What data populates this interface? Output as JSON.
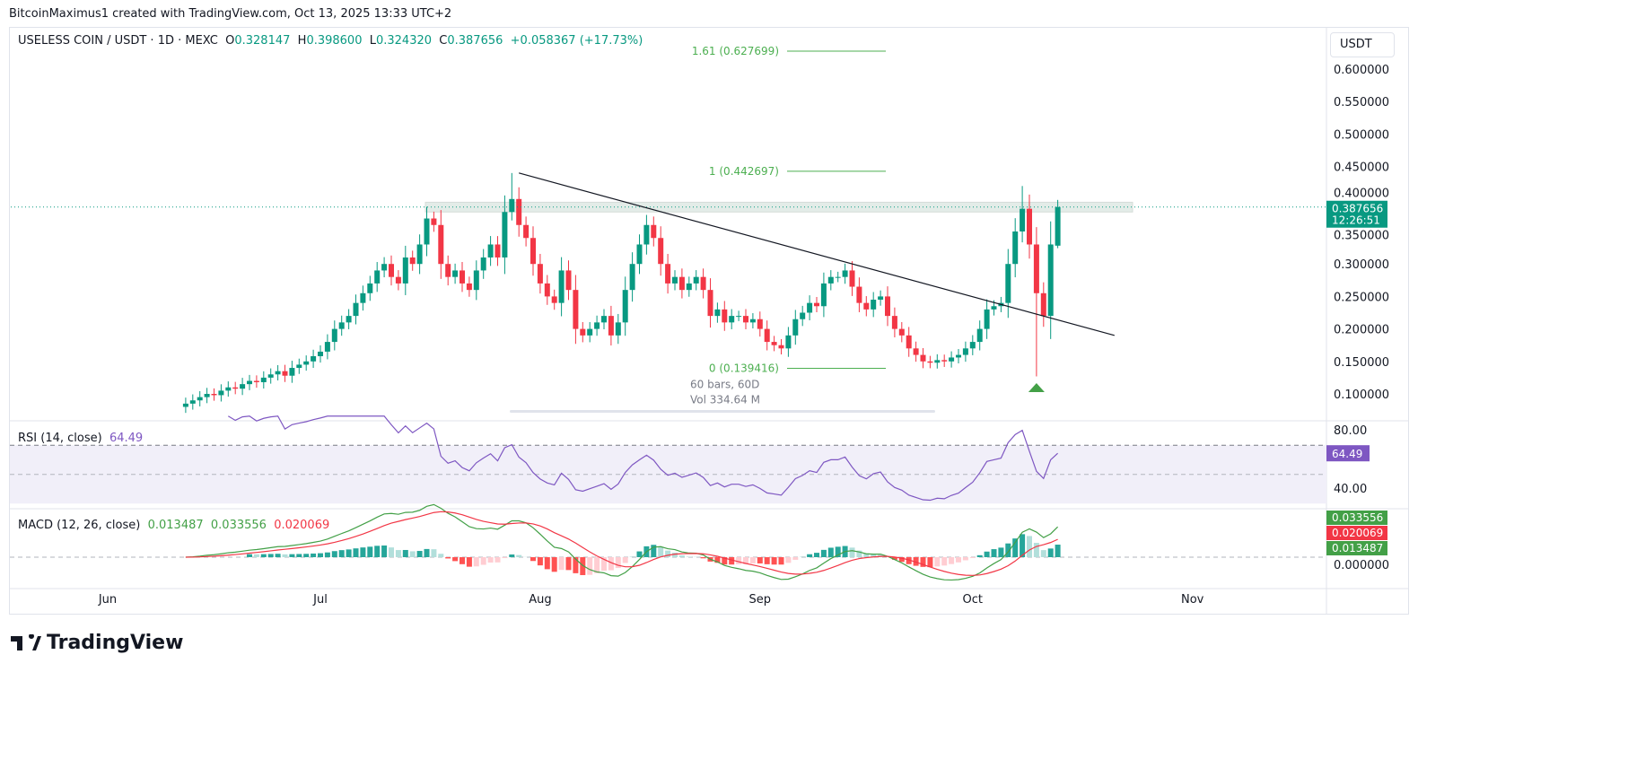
{
  "credit": "BitcoinMaximus1 created with TradingView.com, Oct 13, 2025 13:33 UTC+2",
  "legend": {
    "symbol": "USELESS COIN / USDT · 1D · MEXC",
    "o_label": "O",
    "o": "0.328147",
    "h_label": "H",
    "h": "0.398600",
    "l_label": "L",
    "l": "0.324320",
    "c_label": "C",
    "c": "0.387656",
    "change": "+0.058367 (+17.73%)"
  },
  "currency": "USDT",
  "last_price": "0.387656",
  "countdown": "12:26:51",
  "fib": [
    {
      "label": "1.61 (0.627699)",
      "value": 0.627699
    },
    {
      "label": "1 (0.442697)",
      "value": 0.442697
    },
    {
      "label": "0 (0.139416)",
      "value": 0.139416
    }
  ],
  "range_info": {
    "bars": "60 bars, 60D",
    "vol": "Vol 334.64 M"
  },
  "rsi": {
    "label": "RSI (14, close)",
    "value": "64.49",
    "ticks": [
      "80.00",
      "40.00"
    ]
  },
  "macd": {
    "label": "MACD (12, 26, close)",
    "hist": "0.013487",
    "macd": "0.033556",
    "signal": "0.020069",
    "zero": "0.000000"
  },
  "colors": {
    "up": "#089981",
    "down": "#f23645",
    "rsi": "#7e57c2",
    "macd": "#43a047",
    "signal": "#f23645",
    "fib": "#4caf50"
  },
  "logo": "TradingView",
  "chart_data": {
    "type": "bar",
    "subtype": "candlestick",
    "start_date": "2025-06-12",
    "first_open": 0.08,
    "closes": [
      0.085,
      0.09,
      0.095,
      0.1,
      0.098,
      0.105,
      0.11,
      0.108,
      0.115,
      0.12,
      0.118,
      0.125,
      0.13,
      0.135,
      0.128,
      0.14,
      0.145,
      0.15,
      0.158,
      0.165,
      0.18,
      0.2,
      0.21,
      0.22,
      0.24,
      0.255,
      0.27,
      0.29,
      0.3,
      0.28,
      0.27,
      0.31,
      0.3,
      0.33,
      0.37,
      0.36,
      0.3,
      0.28,
      0.29,
      0.27,
      0.26,
      0.29,
      0.31,
      0.33,
      0.31,
      0.38,
      0.4,
      0.36,
      0.34,
      0.3,
      0.27,
      0.25,
      0.24,
      0.29,
      0.26,
      0.2,
      0.19,
      0.2,
      0.21,
      0.22,
      0.19,
      0.21,
      0.26,
      0.3,
      0.33,
      0.36,
      0.34,
      0.3,
      0.27,
      0.28,
      0.26,
      0.27,
      0.28,
      0.26,
      0.22,
      0.23,
      0.21,
      0.22,
      0.22,
      0.21,
      0.215,
      0.2,
      0.18,
      0.175,
      0.17,
      0.19,
      0.215,
      0.225,
      0.24,
      0.235,
      0.27,
      0.28,
      0.28,
      0.29,
      0.265,
      0.24,
      0.23,
      0.245,
      0.25,
      0.22,
      0.2,
      0.19,
      0.17,
      0.16,
      0.15,
      0.148,
      0.152,
      0.15,
      0.156,
      0.16,
      0.17,
      0.18,
      0.2,
      0.23,
      0.235,
      0.24,
      0.3,
      0.35,
      0.385,
      0.33,
      0.255,
      0.22,
      0.33,
      0.387656
    ],
    "notable_wicks": [
      {
        "date": "2025-07-28",
        "high": 0.44
      },
      {
        "date": "2025-10-08",
        "high": 0.42
      },
      {
        "date": "2025-10-10",
        "low": 0.127
      },
      {
        "date": "2025-10-13",
        "high": 0.3986,
        "low": 0.32432,
        "open": 0.328147
      }
    ],
    "y_ticks": [
      "0.600000",
      "0.550000",
      "0.500000",
      "0.450000",
      "0.400000",
      "0.350000",
      "0.300000",
      "0.250000",
      "0.200000",
      "0.150000",
      "0.100000"
    ],
    "x_ticks": [
      "Jun",
      "Jul",
      "Aug",
      "Sep",
      "Oct",
      "Nov"
    ],
    "trendline": {
      "from": {
        "date": "2025-07-29",
        "price": 0.44
      },
      "to": {
        "date": "2025-10-21",
        "price": 0.19
      }
    },
    "resistance_zone": [
      0.38,
      0.395
    ],
    "ylim": [
      0.07,
      0.66
    ]
  }
}
